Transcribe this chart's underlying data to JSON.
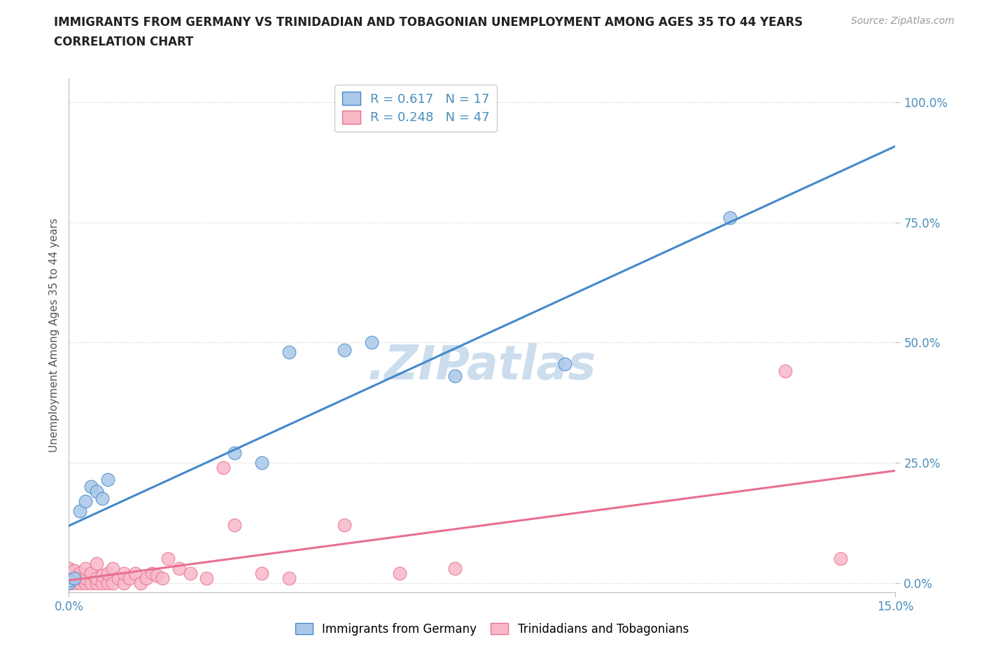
{
  "title_line1": "IMMIGRANTS FROM GERMANY VS TRINIDADIAN AND TOBAGONIAN UNEMPLOYMENT AMONG AGES 35 TO 44 YEARS",
  "title_line2": "CORRELATION CHART",
  "source_text": "Source: ZipAtlas.com",
  "ylabel": "Unemployment Among Ages 35 to 44 years",
  "xlim": [
    0.0,
    0.15
  ],
  "ylim": [
    -0.02,
    1.05
  ],
  "ytick_labels": [
    "0.0%",
    "25.0%",
    "50.0%",
    "75.0%",
    "100.0%"
  ],
  "ytick_vals": [
    0.0,
    0.25,
    0.5,
    0.75,
    1.0
  ],
  "xtick_labels": [
    "0.0%",
    "15.0%"
  ],
  "xtick_vals": [
    0.0,
    0.15
  ],
  "germany_R": 0.617,
  "germany_N": 17,
  "trinidad_R": 0.248,
  "trinidad_N": 47,
  "germany_fill_color": "#aac8e8",
  "trinidad_fill_color": "#f8b8c8",
  "germany_edge_color": "#4488cc",
  "trinidad_edge_color": "#e87090",
  "germany_line_color": "#4488cc",
  "trinidad_line_color": "#e87090",
  "background_color": "#ffffff",
  "grid_color": "#cccccc",
  "watermark_color": "#ccdded",
  "germany_points_x": [
    0.0,
    0.0,
    0.001,
    0.002,
    0.003,
    0.004,
    0.005,
    0.006,
    0.007,
    0.03,
    0.035,
    0.04,
    0.05,
    0.055,
    0.07,
    0.09,
    0.12
  ],
  "germany_points_y": [
    0.0,
    0.005,
    0.01,
    0.15,
    0.17,
    0.2,
    0.19,
    0.175,
    0.215,
    0.27,
    0.25,
    0.48,
    0.485,
    0.5,
    0.43,
    0.455,
    0.76
  ],
  "trinidad_points_x": [
    0.0,
    0.0,
    0.0,
    0.0,
    0.001,
    0.001,
    0.001,
    0.002,
    0.002,
    0.002,
    0.003,
    0.003,
    0.003,
    0.004,
    0.004,
    0.005,
    0.005,
    0.005,
    0.006,
    0.006,
    0.007,
    0.007,
    0.008,
    0.008,
    0.009,
    0.01,
    0.01,
    0.011,
    0.012,
    0.013,
    0.014,
    0.015,
    0.016,
    0.017,
    0.018,
    0.02,
    0.022,
    0.025,
    0.028,
    0.03,
    0.035,
    0.04,
    0.05,
    0.06,
    0.07,
    0.13,
    0.14
  ],
  "trinidad_points_y": [
    0.0,
    0.01,
    0.02,
    0.03,
    0.0,
    0.01,
    0.025,
    0.0,
    0.01,
    0.02,
    0.0,
    0.01,
    0.03,
    0.0,
    0.02,
    0.0,
    0.01,
    0.04,
    0.0,
    0.015,
    0.0,
    0.02,
    0.0,
    0.03,
    0.01,
    0.0,
    0.02,
    0.01,
    0.02,
    0.0,
    0.01,
    0.02,
    0.015,
    0.01,
    0.05,
    0.03,
    0.02,
    0.01,
    0.24,
    0.12,
    0.02,
    0.01,
    0.12,
    0.02,
    0.03,
    0.44,
    0.05
  ],
  "legend_label_germany": "Immigrants from Germany",
  "legend_label_trinidad": "Trinidadians and Tobagonians"
}
